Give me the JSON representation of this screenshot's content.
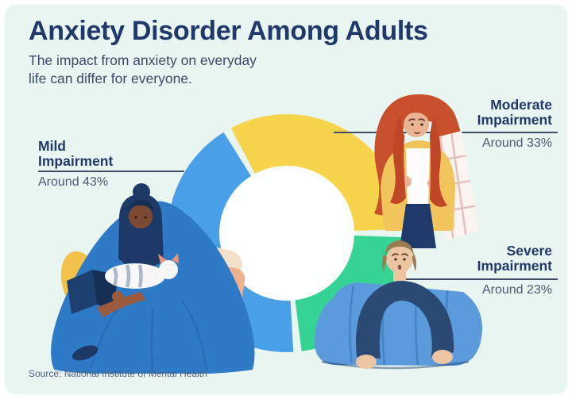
{
  "header": {
    "title": "Anxiety Disorder Among Adults",
    "subtitle_lines": [
      "The impact from anxiety on everyday",
      "life can differ for everyone."
    ]
  },
  "chart_data": {
    "type": "donut",
    "title": "Anxiety Disorder Among Adults",
    "start_angle_deg": -28,
    "gap_deg": 4,
    "hole_ratio": 0.57,
    "legend": "callout labels with leader lines",
    "segments": [
      {
        "id": "moderate",
        "label": "Moderate Impairment",
        "label_lines": [
          "Moderate",
          "Impairment"
        ],
        "value_pct": 33,
        "value_text": "Around 33%",
        "color": "#f6d54d"
      },
      {
        "id": "severe",
        "label": "Severe Impairment",
        "label_lines": [
          "Severe",
          "Impairment"
        ],
        "value_pct": 23,
        "value_text": "Around 23%",
        "color": "#35d394"
      },
      {
        "id": "mild",
        "label": "Mild Impairment",
        "label_lines": [
          "Mild",
          "Impairment"
        ],
        "value_pct": 43,
        "value_text": "Around 43%",
        "color": "#49a0e8"
      }
    ]
  },
  "footer": {
    "source": "Source: National Institute of Mental Health"
  },
  "colors": {
    "page_bg": "#ffffff",
    "card_bg": "#e9f5f1",
    "title": "#21386b",
    "subtitle": "#3a4a6a",
    "callout_title": "#21386b",
    "callout_value": "#4b5a75",
    "leader_line": "#3f4e68",
    "source": "#51627b",
    "donut_hole": "#fdfefe"
  }
}
